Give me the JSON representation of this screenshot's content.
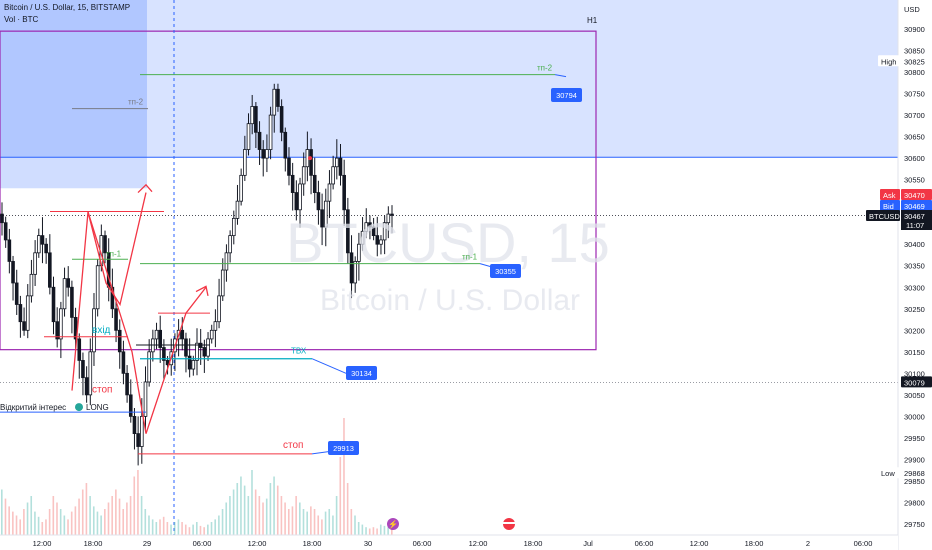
{
  "header": {
    "symbol_line": "Bitcoin / U.S. Dollar, 15, BITSTAMP",
    "vol_line": "Vol · BTC"
  },
  "watermark": {
    "ticker": "BTCUSD, 15",
    "name": "Bitcoin / U.S. Dollar"
  },
  "timeframe_label": "H1",
  "currency": "USD",
  "colors": {
    "up": "#26a69a",
    "down": "#ef5350",
    "candle": "#131722",
    "zone": "#2962ff",
    "box": "#9c27b0",
    "green_line": "#4caf50",
    "red_line": "#f23645",
    "teal": "#00acc1",
    "badge": "#2962ff"
  },
  "annotations": {
    "tp2_top": "тп-2",
    "tp2_left": "тп-2",
    "tp1_right": "тп-1",
    "tp1_left": "тп-1",
    "entry": "вхід",
    "tvh": "ТВХ",
    "stop_left": "стоп",
    "stop_right": "стоп",
    "oi_label": "Відкритий інтерес",
    "long_label": "LONG"
  },
  "badges": {
    "tp2": "30794",
    "tp1": "30355",
    "tvh": "30134",
    "stop": "29913"
  },
  "price_axis": {
    "ticks": [
      "30900",
      "30850",
      "30800",
      "30750",
      "30700",
      "30650",
      "30600",
      "30550",
      "30450",
      "30400",
      "30350",
      "30300",
      "30250",
      "30200",
      "30150",
      "30100",
      "30050",
      "30000",
      "29950",
      "29900",
      "29850",
      "29800",
      "29750"
    ],
    "high_label": "High",
    "high_value": "30825",
    "ask_label": "Ask",
    "ask_value": "30470",
    "bid_label": "Bid",
    "bid_value": "30469",
    "last_symbol": "BTCUSD",
    "last_value": "30467",
    "countdown": "11:07",
    "level_value": "30079",
    "low_label": "Low",
    "low_value": "29868"
  },
  "time_axis": {
    "ticks": [
      "12:00",
      "18:00",
      "29",
      "06:00",
      "12:00",
      "18:00",
      "30",
      "06:00",
      "12:00",
      "18:00",
      "Jul",
      "06:00",
      "12:00",
      "18:00",
      "2",
      "06:00"
    ]
  },
  "chart_data": {
    "type": "candlestick",
    "title": "Bitcoin / U.S. Dollar, 15, BITSTAMP",
    "symbol": "BTCUSD",
    "interval": "15",
    "currency": "USD",
    "y_range": [
      29730,
      30965
    ],
    "levels": {
      "tp2": 30794,
      "tp1": 30355,
      "tvh": 30134,
      "stop": 29913,
      "zone_bottom": 30602,
      "h1_box_top": 30895,
      "h1_box_bottom": 30155,
      "last": 30467,
      "ask": 30470,
      "bid": 30469,
      "high": 30825,
      "low": 29868,
      "dotted": 30079
    },
    "close_path": [
      30450,
      30410,
      30360,
      30310,
      30260,
      30220,
      30200,
      30280,
      30330,
      30380,
      30420,
      30400,
      30380,
      30300,
      30220,
      30180,
      30250,
      30320,
      30300,
      30230,
      30180,
      30130,
      30090,
      30050,
      30150,
      30250,
      30350,
      30420,
      30380,
      30300,
      30250,
      30200,
      30150,
      30100,
      30050,
      30000,
      29960,
      29930,
      30000,
      30080,
      30150,
      30180,
      30200,
      30160,
      30130,
      30120,
      30150,
      30180,
      30200,
      30180,
      30140,
      30110,
      30130,
      30170,
      30160,
      30140,
      30180,
      30200,
      30220,
      30280,
      30340,
      30380,
      30420,
      30460,
      30500,
      30560,
      30620,
      30680,
      30720,
      30660,
      30620,
      30600,
      30620,
      30700,
      30760,
      30720,
      30660,
      30600,
      30560,
      30520,
      30480,
      30540,
      30580,
      30620,
      30560,
      30520,
      30480,
      30440,
      30500,
      30540,
      30580,
      30600,
      30560,
      30480,
      30380,
      30310,
      30360,
      30400,
      30430,
      30450,
      30440,
      30420,
      30400,
      30410,
      30450,
      30470,
      30467
    ],
    "volume_path": [
      0.35,
      0.28,
      0.22,
      0.18,
      0.15,
      0.12,
      0.2,
      0.25,
      0.3,
      0.18,
      0.14,
      0.1,
      0.12,
      0.2,
      0.3,
      0.25,
      0.2,
      0.15,
      0.12,
      0.18,
      0.22,
      0.28,
      0.35,
      0.4,
      0.3,
      0.22,
      0.18,
      0.15,
      0.2,
      0.25,
      0.3,
      0.35,
      0.28,
      0.2,
      0.25,
      0.3,
      0.45,
      0.5,
      0.3,
      0.2,
      0.15,
      0.12,
      0.1,
      0.12,
      0.14,
      0.1,
      0.08,
      0.1,
      0.12,
      0.1,
      0.08,
      0.06,
      0.08,
      0.1,
      0.07,
      0.06,
      0.08,
      0.1,
      0.12,
      0.15,
      0.2,
      0.25,
      0.3,
      0.35,
      0.4,
      0.45,
      0.38,
      0.3,
      0.5,
      0.35,
      0.3,
      0.25,
      0.28,
      0.4,
      0.45,
      0.38,
      0.3,
      0.25,
      0.2,
      0.22,
      0.3,
      0.25,
      0.2,
      0.18,
      0.22,
      0.2,
      0.15,
      0.12,
      0.18,
      0.2,
      0.15,
      0.3,
      0.6,
      0.9,
      0.4,
      0.2,
      0.15,
      0.1,
      0.08,
      0.06,
      0.05,
      0.06,
      0.05,
      0.08,
      0.07,
      0.06,
      0.05
    ]
  }
}
